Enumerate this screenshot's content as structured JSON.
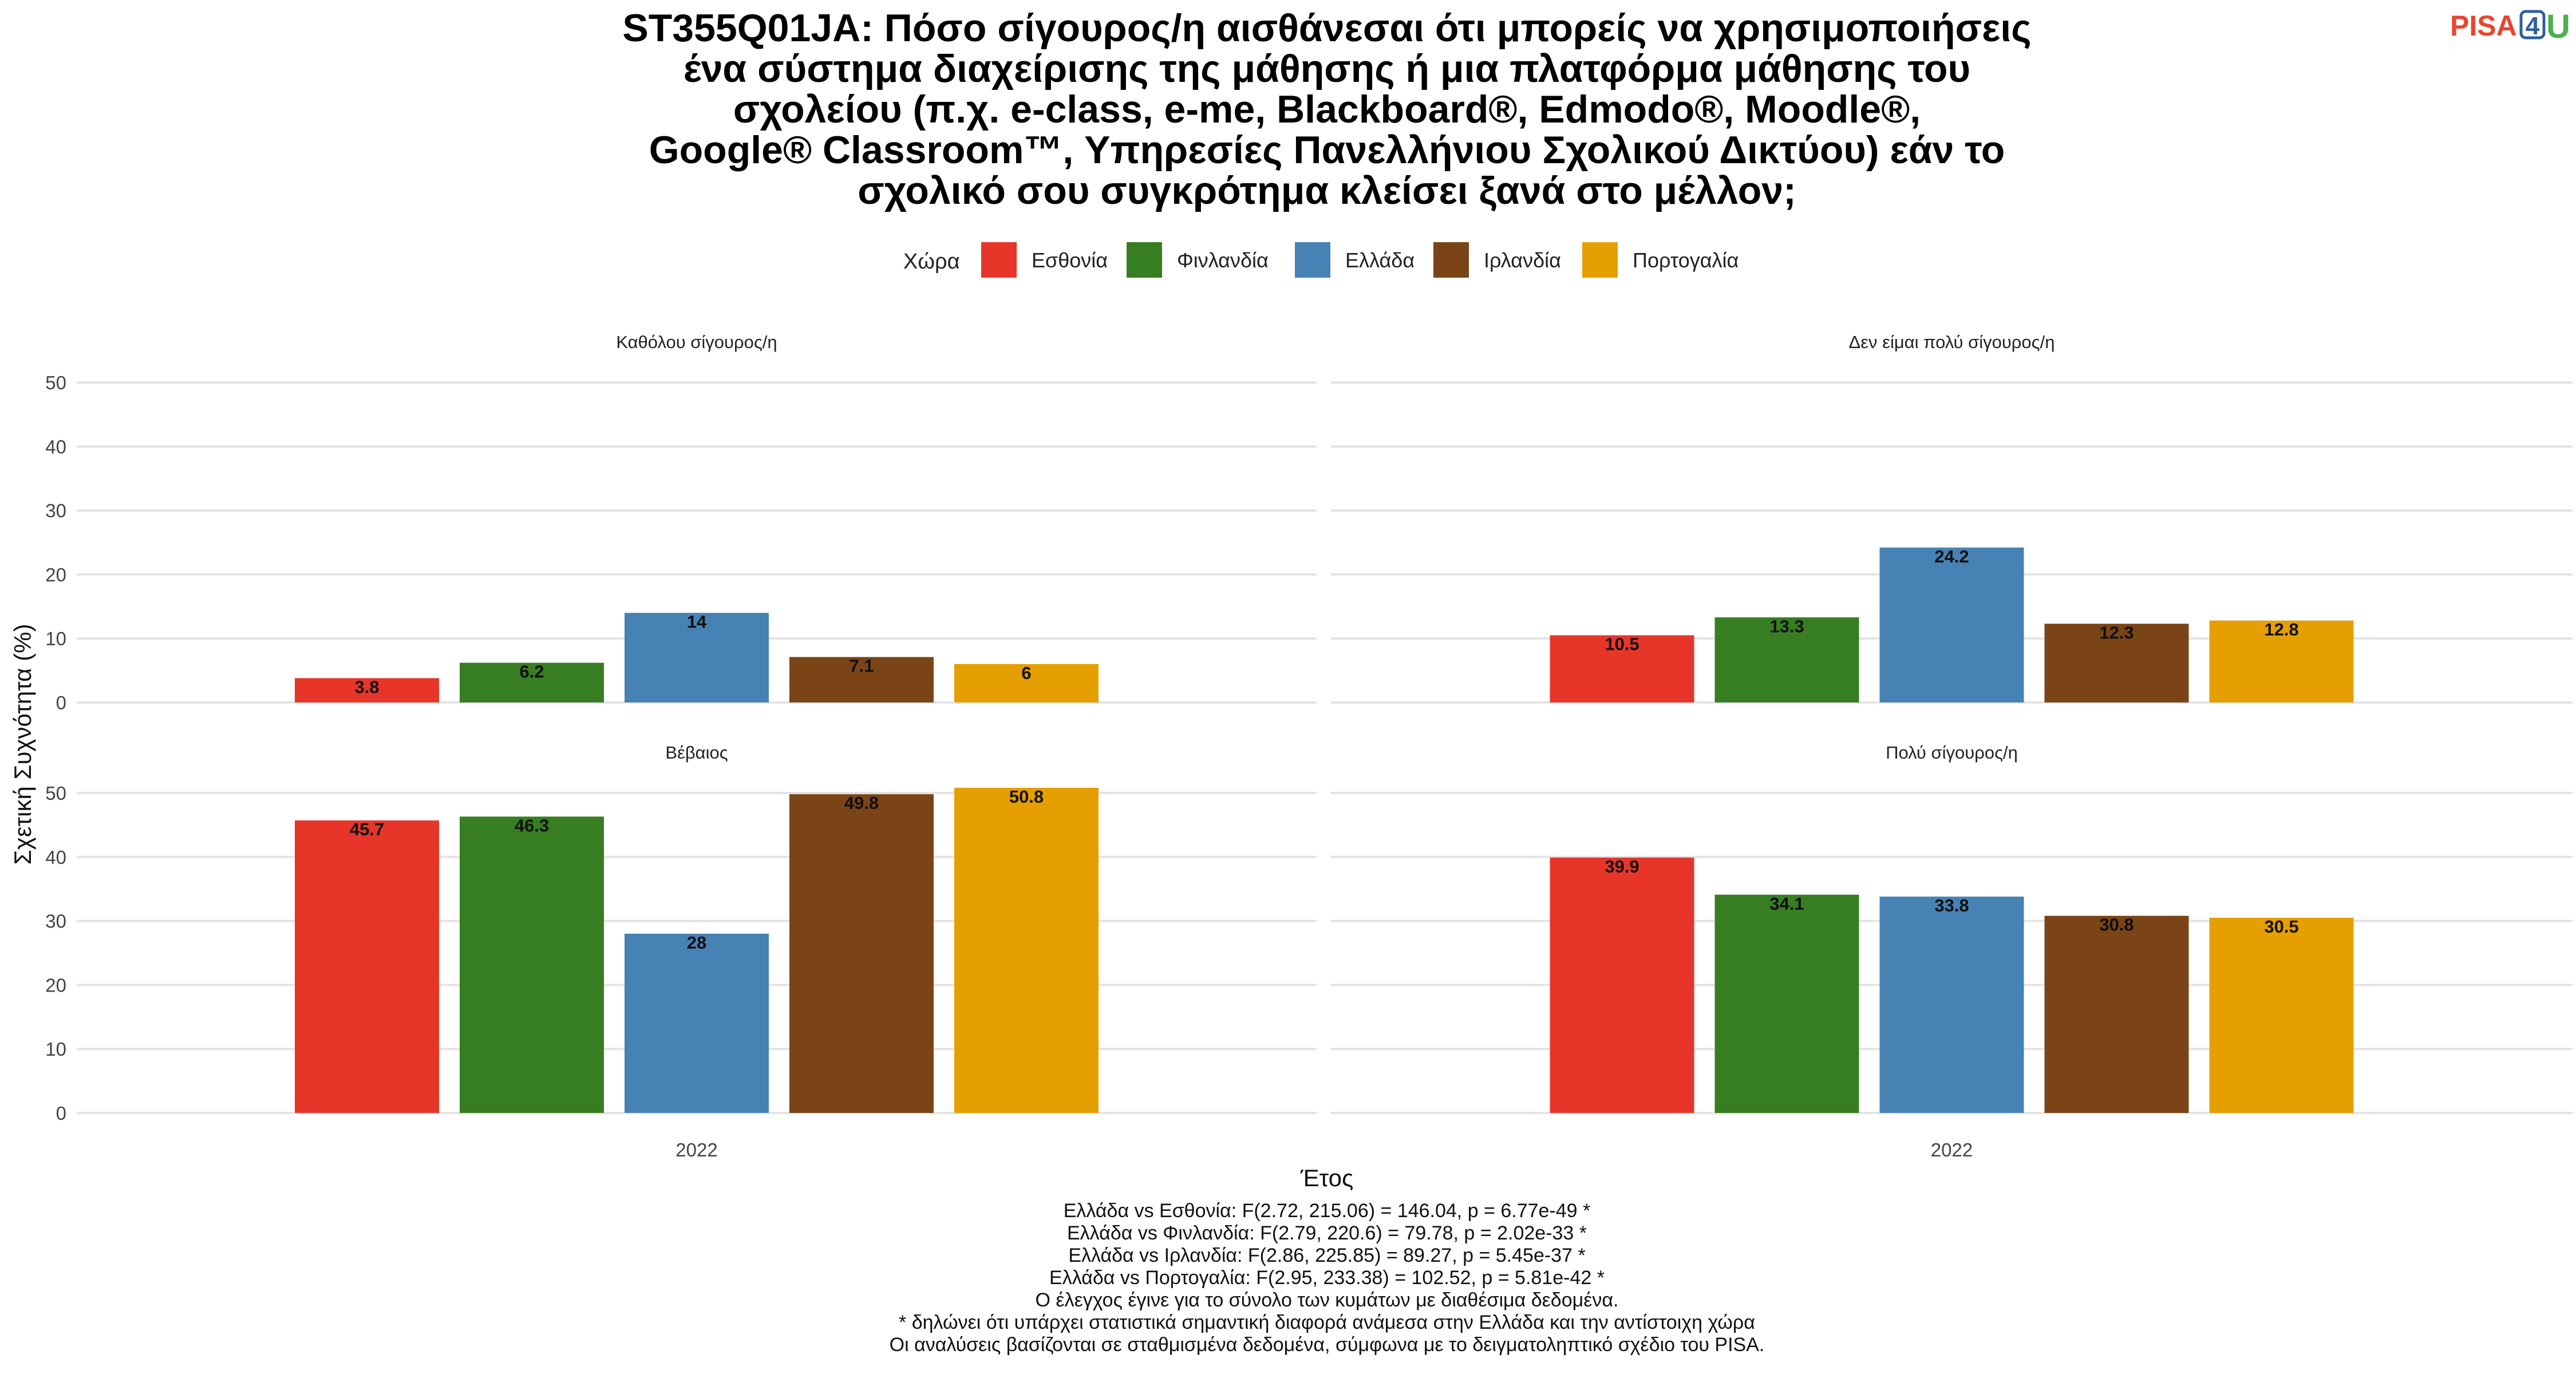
{
  "logo": {
    "pisa": "PISA",
    "four": "4",
    "u": "U"
  },
  "title_lines": [
    "ST355Q01JA: Πόσο σίγουρος/η αισθάνεσαι ότι μπορείς να χρησιμοποιήσεις",
    "ένα σύστημα διαχείρισης της μάθησης ή μια πλατφόρμα μάθησης του",
    "σχολείου (π.χ. e-class, e-me, Blackboard®, Edmodo®, Moodle®,",
    "Google® Classroom™, Υπηρεσίες Πανελλήνιου Σχολικού Δικτύου) εάν το",
    "σχολικό σου συγκρότημα κλείσει ξανά στο μέλλον;"
  ],
  "legend_title": "Χώρα",
  "colors": {
    "Εσθονία": "#E8352A",
    "Φινλανδία": "#377E22",
    "Ελλάδα": "#4682B4",
    "Ιρλανδία": "#7B4417",
    "Πορτογαλία": "#E69F00",
    "grid": "#e4e4e4"
  },
  "chart_data": {
    "type": "bar",
    "facet_by": "response",
    "x_category": "2022",
    "xlabel": "Έτος",
    "ylabel": "Σχετική Συχνότητα (%)",
    "ylim": [
      0,
      50
    ],
    "yticks": [
      0,
      10,
      20,
      30,
      40,
      50
    ],
    "grid": true,
    "legend_position": "top",
    "series_names": [
      "Εσθονία",
      "Φινλανδία",
      "Ελλάδα",
      "Ιρλανδία",
      "Πορτογαλία"
    ],
    "panels": [
      {
        "title": "Καθόλου σίγουρος/η",
        "values": [
          3.8,
          6.2,
          14,
          7.1,
          6
        ],
        "labels": [
          "3.8",
          "6.2",
          "14",
          "7.1",
          "6"
        ]
      },
      {
        "title": "Δεν είμαι πολύ σίγουρος/η",
        "values": [
          10.5,
          13.3,
          24.2,
          12.3,
          12.8
        ],
        "labels": [
          "10.5",
          "13.3",
          "24.2",
          "12.3",
          "12.8"
        ]
      },
      {
        "title": "Βέβαιος",
        "values": [
          45.7,
          46.3,
          28,
          49.8,
          50.8
        ],
        "labels": [
          "45.7",
          "46.3",
          "28",
          "49.8",
          "50.8"
        ]
      },
      {
        "title": "Πολύ σίγουρος/η",
        "values": [
          39.9,
          34.1,
          33.8,
          30.8,
          30.5
        ],
        "labels": [
          "39.9",
          "34.1",
          "33.8",
          "30.8",
          "30.5"
        ]
      }
    ]
  },
  "notes": [
    "Ελλάδα vs Εσθονία: F(2.72, 215.06) = 146.04, p = 6.77e-49 *",
    "Ελλάδα vs Φινλανδία: F(2.79, 220.6) = 79.78, p = 2.02e-33 *",
    "Ελλάδα vs Ιρλανδία: F(2.86, 225.85) = 89.27, p = 5.45e-37 *",
    "Ελλάδα vs Πορτογαλία: F(2.95, 233.38) = 102.52, p = 5.81e-42 *",
    "Ο έλεγχος έγινε για το σύνολο των κυμάτων με διαθέσιμα δεδομένα.",
    "* δηλώνει ότι υπάρχει στατιστικά σημαντική διαφορά ανάμεσα στην Ελλάδα και την αντίστοιχη χώρα",
    "Οι αναλύσεις βασίζονται σε σταθμισμένα δεδομένα, σύμφωνα με το δειγματοληπτικό σχέδιο του PISA."
  ]
}
